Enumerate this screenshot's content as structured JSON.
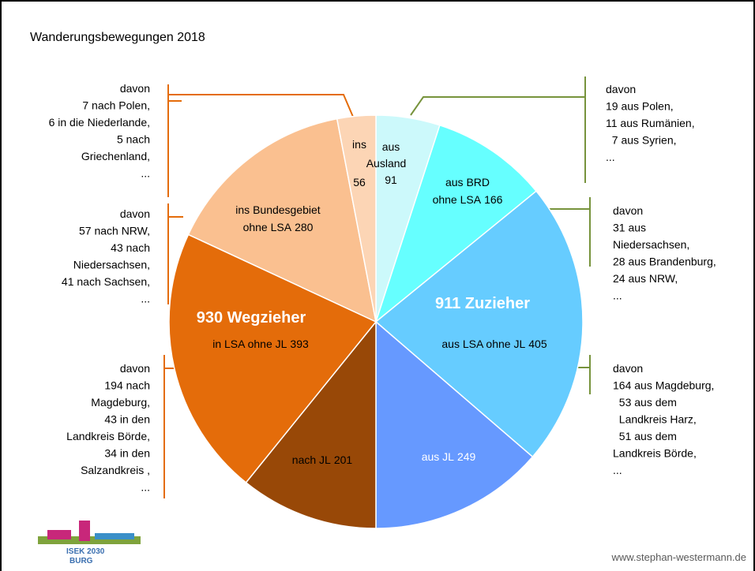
{
  "chart_data": {
    "type": "pie",
    "title": "Wanderungsbewegungen 2018",
    "groups": [
      {
        "name": "911 Zuzieher",
        "slices": [
          {
            "label": [
              "aus",
              "Ausland"
            ],
            "value": 91,
            "color": "#ccf9fb"
          },
          {
            "label": [
              "aus BRD",
              "ohne LSA"
            ],
            "value": 166,
            "color": "#66ffff"
          },
          {
            "label": [
              "aus LSA ohne JL"
            ],
            "value": 405,
            "color": "#66ccff"
          },
          {
            "label": [
              "aus JL"
            ],
            "value": 249,
            "color": "#6699ff"
          }
        ]
      },
      {
        "name": "930 Wegzieher",
        "slices": [
          {
            "label": [
              "nach JL"
            ],
            "value": 201,
            "color": "#984807"
          },
          {
            "label": [
              "in LSA ohne JL"
            ],
            "value": 393,
            "color": "#e46c0a"
          },
          {
            "label": [
              "ins Bundesgebiet",
              "ohne LSA"
            ],
            "value": 280,
            "color": "#fac090"
          },
          {
            "label": [
              "ins"
            ],
            "value": 56,
            "color": "#fcd5b5"
          }
        ]
      }
    ],
    "annotations": [
      {
        "lines": [
          "davon",
          "19 aus Polen,",
          "11 aus Rumänien,",
          "  7 aus Syrien,",
          "..."
        ]
      },
      {
        "lines": [
          "davon",
          "31 aus",
          "Niedersachsen,",
          "28 aus Brandenburg,",
          "24 aus NRW,",
          "..."
        ]
      },
      {
        "lines": [
          "davon",
          "164 aus Magdeburg,",
          "  53 aus dem",
          "  Landkreis Harz,",
          "  51 aus dem",
          "Landkreis Börde,",
          "..."
        ]
      },
      {
        "lines": [
          "davon",
          "7 nach Polen,",
          "6 in die Niederlande,",
          "5 nach",
          "Griechenland,",
          "..."
        ]
      },
      {
        "lines": [
          "davon",
          "57 nach NRW,",
          "43 nach",
          "Niedersachsen,",
          "41 nach Sachsen,",
          "..."
        ]
      },
      {
        "lines": [
          "davon",
          "194 nach",
          "Magdeburg,",
          "43 in den",
          "Landkreis Börde,",
          "34 in den",
          "Salzandkreis ,",
          "..."
        ]
      }
    ],
    "logo_text": [
      "ISEK 2030",
      "BURG"
    ],
    "footer": "www.stephan-westermann.de"
  }
}
